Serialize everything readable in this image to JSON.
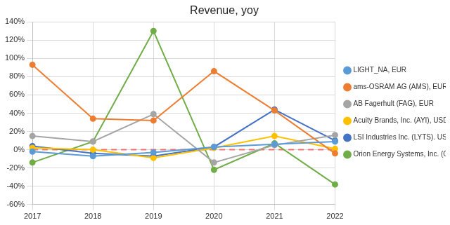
{
  "chart_data": {
    "type": "line",
    "title": "Revenue, yoy",
    "categories": [
      "2017",
      "2018",
      "2019",
      "2020",
      "2021",
      "2022"
    ],
    "series": [
      {
        "name": "LIGHT_NA, EUR",
        "color": "#5b9bd5",
        "values": [
          -2,
          -7,
          -3,
          3,
          6,
          9
        ]
      },
      {
        "name": "ams-OSRAM AG (AMS), EUR",
        "color": "#ed7d31",
        "values": [
          93,
          34,
          32,
          86,
          43,
          -4
        ]
      },
      {
        "name": "AB Fagerhult (FAG), EUR",
        "color": "#a5a5a5",
        "values": [
          15,
          9,
          39,
          -14,
          5,
          16
        ]
      },
      {
        "name": "Acuity Brands, Inc. (AYI), USD",
        "color": "#ffc000",
        "values": [
          2,
          0,
          -9,
          2,
          15,
          1
        ]
      },
      {
        "name": "LSI Industries Inc. (LYTS). USD",
        "color": "#4472c4",
        "values": [
          4,
          -4,
          -7,
          3,
          44,
          10
        ]
      },
      {
        "name": "Orion Energy Systems, Inc. (OESX), USD",
        "color": "#70ad47",
        "values": [
          -14,
          9,
          130,
          -22,
          7,
          -38
        ]
      }
    ],
    "ylim": [
      -60,
      140
    ],
    "yticks": [
      {
        "value": -60,
        "label": "-60%"
      },
      {
        "value": -40,
        "label": "-40%"
      },
      {
        "value": -20,
        "label": "-20%"
      },
      {
        "value": 0,
        "label": "0%"
      },
      {
        "value": 20,
        "label": "20%"
      },
      {
        "value": 40,
        "label": "40%"
      },
      {
        "value": 60,
        "label": "60%"
      },
      {
        "value": 80,
        "label": "80%"
      },
      {
        "value": 100,
        "label": "100%"
      },
      {
        "value": 120,
        "label": "120%"
      },
      {
        "value": 140,
        "label": "140%"
      }
    ],
    "grid": true,
    "legend": "right",
    "marker": "circle"
  }
}
